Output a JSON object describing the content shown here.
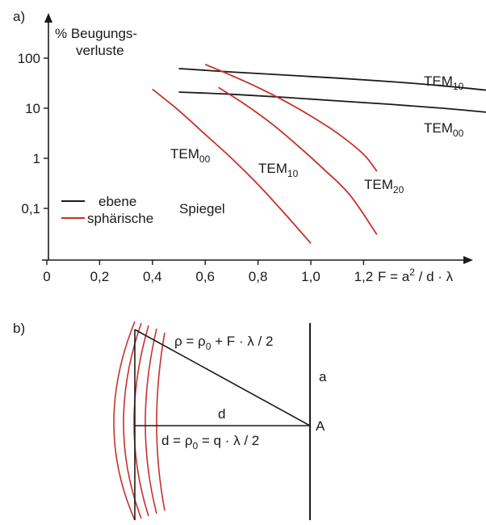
{
  "panel_a": {
    "label": "a)"
  },
  "panel_b": {
    "label": "b)",
    "rho_formula": {
      "lhs": "ρ = ρ",
      "sub": "0",
      "rhs": " + F · λ / 2"
    },
    "d_label": "d",
    "d_formula": {
      "lhs": "d = ρ",
      "sub": "0",
      "rhs": " = q · λ / 2"
    },
    "a_label": "a",
    "A_label": "A"
  },
  "colors": {
    "ebene": "#1a1a1a",
    "spharische": "#c8302a"
  },
  "chart_data": {
    "type": "line",
    "yscale": "log",
    "ylabel": [
      "% Beugungs-",
      "verluste"
    ],
    "xlabel": {
      "pre": "F = a",
      "sup": "2",
      "post": " / d · λ"
    },
    "xlim": [
      -0.05,
      1.95
    ],
    "ylim": [
      0.003,
      330
    ],
    "xticks": [
      {
        "v": 0,
        "label": "0"
      },
      {
        "v": 0.2,
        "label": "0,2"
      },
      {
        "v": 0.4,
        "label": "0,4"
      },
      {
        "v": 0.6,
        "label": "0,6"
      },
      {
        "v": 0.8,
        "label": "0,8"
      },
      {
        "v": 1.0,
        "label": "1,0"
      },
      {
        "v": 1.2,
        "label": "1,2"
      }
    ],
    "yticks": [
      {
        "v": 100,
        "label": "100"
      },
      {
        "v": 10,
        "label": "10"
      },
      {
        "v": 1,
        "label": "1"
      },
      {
        "v": 0.1,
        "label": "0,1"
      }
    ],
    "legend": {
      "position": "bottom-left",
      "entries": [
        {
          "label": "ebene",
          "color": "#1a1a1a"
        },
        {
          "label": "sphärische",
          "color": "#c8302a"
        }
      ],
      "suffix": "Spiegel"
    },
    "series": [
      {
        "name": "TEM₁₀",
        "label": {
          "pre": "TEM",
          "sub": "10"
        },
        "group": "ebene",
        "color": "#1a1a1a",
        "x": [
          0.5,
          0.7,
          0.9,
          1.1,
          1.3,
          1.5,
          1.7
        ],
        "y": [
          62,
          53,
          46,
          40,
          34,
          28,
          22
        ]
      },
      {
        "name": "TEM₀₀",
        "label": {
          "pre": "TEM",
          "sub": "00"
        },
        "group": "ebene",
        "color": "#1a1a1a",
        "x": [
          0.5,
          0.7,
          0.9,
          1.1,
          1.3,
          1.5,
          1.7
        ],
        "y": [
          21,
          19,
          16.5,
          14,
          12,
          10,
          8
        ]
      },
      {
        "name": "TEM₀₀",
        "label": {
          "pre": "TEM",
          "sub": "00"
        },
        "group": "sphärische",
        "color": "#c8302a",
        "x": [
          0.4,
          0.5,
          0.6,
          0.7,
          0.8,
          0.9,
          1.0
        ],
        "y": [
          24,
          9,
          3,
          1.0,
          0.3,
          0.08,
          0.02
        ]
      },
      {
        "name": "TEM₁₀",
        "label": {
          "pre": "TEM",
          "sub": "10"
        },
        "group": "sphärische",
        "color": "#c8302a",
        "x": [
          0.65,
          0.75,
          0.85,
          0.95,
          1.05,
          1.15,
          1.25
        ],
        "y": [
          26,
          12,
          5,
          1.8,
          0.6,
          0.18,
          0.03
        ]
      },
      {
        "name": "TEM₂₀",
        "label": {
          "pre": "TEM",
          "sub": "20"
        },
        "group": "sphärische",
        "color": "#c8302a",
        "x": [
          0.6,
          0.7,
          0.8,
          0.9,
          1.0,
          1.1,
          1.2,
          1.25
        ],
        "y": [
          75,
          45,
          26,
          14,
          7,
          3.2,
          1.2,
          0.55
        ]
      }
    ]
  }
}
